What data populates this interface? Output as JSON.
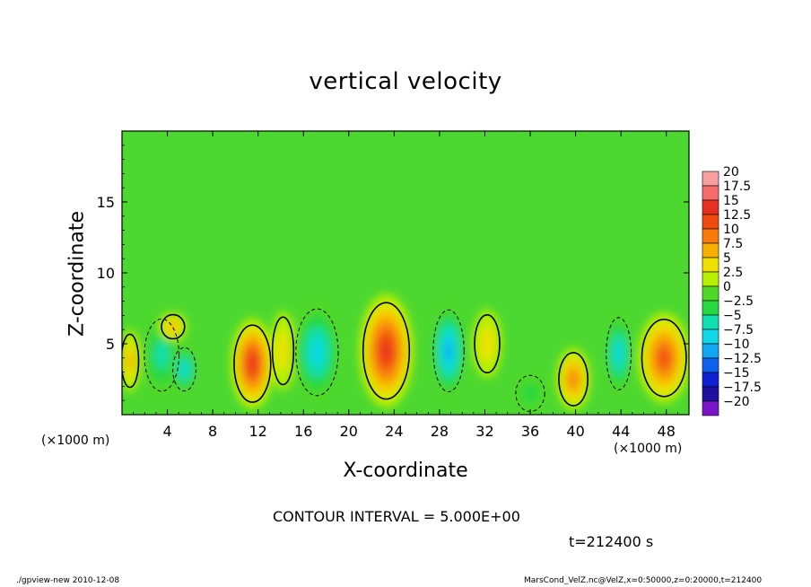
{
  "chart_data": {
    "type": "heatmap",
    "title": "vertical velocity",
    "xlabel": "X-coordinate",
    "ylabel": "Z-coordinate",
    "x_unit_label": "(×1000 m)",
    "x_ticks": [
      4,
      8,
      12,
      16,
      20,
      24,
      28,
      32,
      36,
      40,
      44,
      48
    ],
    "x_tick_labels": [
      "4",
      "8",
      "12",
      "16",
      "20",
      "24",
      "28",
      "32",
      "36",
      "40",
      "44",
      "48"
    ],
    "y_ticks": [
      5,
      10,
      15
    ],
    "y_tick_labels": [
      "5",
      "10",
      "15"
    ],
    "xlim": [
      0,
      50
    ],
    "ylim": [
      0,
      20
    ],
    "contour_interval_text": "CONTOUR INTERVAL = 5.000E+00",
    "time_text": "t=212400 s",
    "colorbar": {
      "levels": [
        20,
        17.5,
        15,
        12.5,
        10,
        7.5,
        5,
        2.5,
        0,
        -2.5,
        -5,
        -7.5,
        -10,
        -12.5,
        -15,
        -17.5,
        -20
      ],
      "labels": [
        "20",
        "17.5",
        "15",
        "12.5",
        "10",
        "7.5",
        "5",
        "2.5",
        "0",
        "−2.5",
        "−5",
        "−7.5",
        "−10",
        "−12.5",
        "−15",
        "−17.5",
        "−20"
      ],
      "colors": [
        "#f8a0a0",
        "#f56c6c",
        "#e83020",
        "#f04a10",
        "#f87a08",
        "#f8b000",
        "#f0e000",
        "#b8f000",
        "#50d828",
        "#28d840",
        "#10e0b0",
        "#10d8e8",
        "#10a8f0",
        "#1060f0",
        "#1020d0",
        "#2010a0",
        "#7a14c8"
      ]
    },
    "cells": [
      {
        "x": 0.7,
        "z": 3.8,
        "rx": 0.9,
        "rz": 2.2,
        "value": 7
      },
      {
        "x": 3.5,
        "z": 4.2,
        "rx": 1.8,
        "rz": 3.0,
        "value": -7.5
      },
      {
        "x": 5.5,
        "z": 3.2,
        "rx": 1.2,
        "rz": 1.8,
        "value": -8
      },
      {
        "x": 4.5,
        "z": 6.2,
        "rx": 1.2,
        "rz": 1.0,
        "value": 6
      },
      {
        "x": 11.5,
        "z": 3.6,
        "rx": 1.9,
        "rz": 3.2,
        "value": 13
      },
      {
        "x": 14.2,
        "z": 4.5,
        "rx": 1.1,
        "rz": 2.8,
        "value": 3
      },
      {
        "x": 17.2,
        "z": 4.4,
        "rx": 2.2,
        "rz": 3.6,
        "value": -9
      },
      {
        "x": 23.3,
        "z": 4.5,
        "rx": 2.4,
        "rz": 4.0,
        "value": 15
      },
      {
        "x": 28.8,
        "z": 4.5,
        "rx": 1.6,
        "rz": 3.4,
        "value": -12
      },
      {
        "x": 32.2,
        "z": 5.0,
        "rx": 1.3,
        "rz": 2.4,
        "value": 5
      },
      {
        "x": 36.0,
        "z": 1.5,
        "rx": 1.5,
        "rz": 1.5,
        "value": -4
      },
      {
        "x": 39.8,
        "z": 2.5,
        "rx": 1.5,
        "rz": 2.2,
        "value": 9
      },
      {
        "x": 43.8,
        "z": 4.3,
        "rx": 1.3,
        "rz": 3.0,
        "value": -8
      },
      {
        "x": 47.8,
        "z": 4.0,
        "rx": 2.3,
        "rz": 3.2,
        "value": 12
      }
    ]
  },
  "footer": {
    "left": "./gpview-new  2010-12-08",
    "right": "MarsCond_VelZ.nc@VelZ,x=0:50000,z=0:20000,t=212400"
  }
}
